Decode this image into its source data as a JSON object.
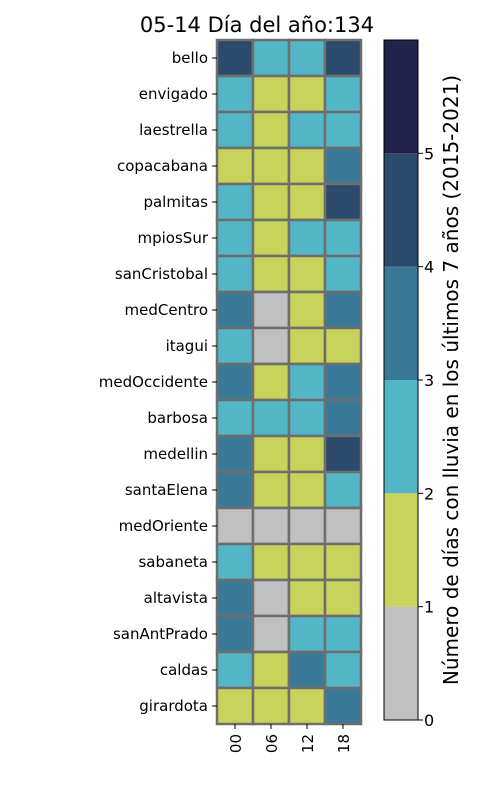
{
  "chart_data": {
    "type": "heatmap",
    "title": "05-14 Día del año:134",
    "x_categories": [
      "00",
      "06",
      "12",
      "18"
    ],
    "y_categories": [
      "bello",
      "envigado",
      "laestrella",
      "copacabana",
      "palmitas",
      "mpiosSur",
      "sanCristobal",
      "medCentro",
      "itagui",
      "medOccidente",
      "barbosa",
      "medellin",
      "santaElena",
      "medOriente",
      "sabaneta",
      "altavista",
      "sanAntPrado",
      "caldas",
      "girardota"
    ],
    "values": [
      [
        4,
        2,
        2,
        4
      ],
      [
        2,
        1,
        1,
        2
      ],
      [
        2,
        1,
        2,
        2
      ],
      [
        1,
        1,
        1,
        3
      ],
      [
        2,
        1,
        1,
        4
      ],
      [
        2,
        1,
        2,
        2
      ],
      [
        2,
        1,
        1,
        2
      ],
      [
        3,
        0,
        1,
        3
      ],
      [
        2,
        0,
        1,
        1
      ],
      [
        3,
        1,
        2,
        3
      ],
      [
        2,
        2,
        2,
        3
      ],
      [
        3,
        1,
        1,
        4
      ],
      [
        3,
        1,
        1,
        2
      ],
      [
        0,
        0,
        0,
        0
      ],
      [
        2,
        1,
        1,
        1
      ],
      [
        3,
        0,
        1,
        1
      ],
      [
        3,
        0,
        2,
        2
      ],
      [
        2,
        1,
        3,
        2
      ],
      [
        1,
        1,
        1,
        3
      ]
    ],
    "colorbar": {
      "label": "Número de días con lluvia en los últimos 7 años (2015-2021)",
      "range": [
        0,
        6
      ],
      "ticks": [
        "0",
        "1",
        "2",
        "3",
        "4",
        "5"
      ],
      "colors": [
        "#c0c0c0",
        "#c8d35c",
        "#52b6c7",
        "#3a7a98",
        "#2b4a6c",
        "#22234a"
      ]
    },
    "grid": true,
    "cell_border_color": "#6e6e6e"
  }
}
